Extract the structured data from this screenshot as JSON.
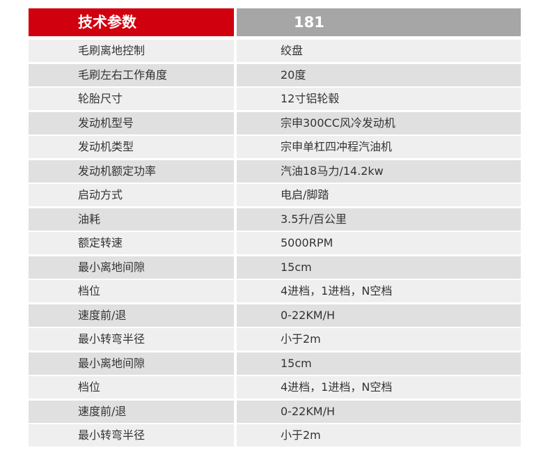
{
  "header": {
    "label": "技术参数",
    "model": "181"
  },
  "rows": [
    {
      "name": "毛刷离地控制",
      "value": "绞盘"
    },
    {
      "name": "毛刷左右工作角度",
      "value": "20度"
    },
    {
      "name": "轮胎尺寸",
      "value": "12寸铝轮毂"
    },
    {
      "name": "发动机型号",
      "value": "宗申300CC风冷发动机"
    },
    {
      "name": "发动机类型",
      "value": "宗申单杠四冲程汽油机"
    },
    {
      "name": "发动机额定功率",
      "value": "汽油18马力/14.2kw"
    },
    {
      "name": "启动方式",
      "value": "电启/脚踏"
    },
    {
      "name": "油耗",
      "value": "3.5升/百公里"
    },
    {
      "name": "额定转速",
      "value": "5000RPM"
    },
    {
      "name": "最小离地间隙",
      "value": "15cm"
    },
    {
      "name": "档位",
      "value": "4进档，1进档，N空档"
    },
    {
      "name": "速度前/退",
      "value": "0-22KM/H"
    },
    {
      "name": "最小转弯半径",
      "value": "小于2m"
    },
    {
      "name": "最小离地间隙",
      "value": "15cm"
    },
    {
      "name": "档位",
      "value": "4进档，1进档，N空档"
    },
    {
      "name": "速度前/退",
      "value": "0-22KM/H"
    },
    {
      "name": "最小转弯半径",
      "value": "小于2m"
    }
  ],
  "colors": {
    "header_left": "#d0000f",
    "header_right": "#a6a6a6",
    "row_light": "#efefef",
    "row_dark": "#e0e0e0"
  }
}
